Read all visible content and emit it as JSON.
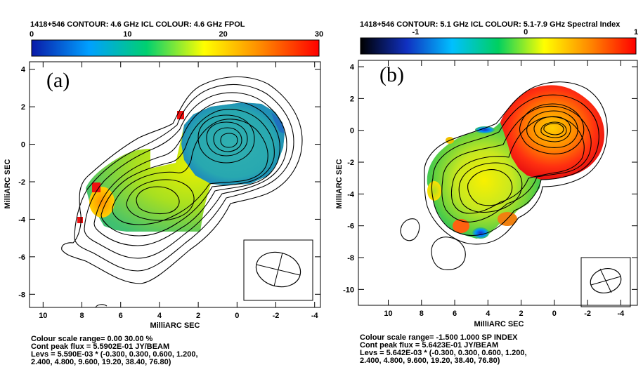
{
  "chart_data": [
    {
      "type": "heatmap",
      "panel_label": "(a)",
      "title": "1418+546  CONTOUR: 4.6 GHz ICL   COLOUR: 4.6 GHz FPOL",
      "xlabel": "MilliARC SEC",
      "ylabel": "MilliARC SEC",
      "xlim": [
        10.7,
        -4.3
      ],
      "ylim": [
        -8.7,
        4.4
      ],
      "xticks": [
        10,
        8,
        6,
        4,
        2,
        0,
        -2,
        -4
      ],
      "yticks": [
        4,
        2,
        0,
        -2,
        -4,
        -6,
        -8
      ],
      "colorbar": {
        "range": [
          0,
          30
        ],
        "ticks": [
          0,
          10,
          20,
          30
        ],
        "colors": [
          "#0a1aa8",
          "#00a0ff",
          "#00d070",
          "#ffff00",
          "#ff8800",
          "#ff0000"
        ]
      },
      "beam": {
        "type": "ellipse",
        "shown": true
      },
      "footer": [
        "Colour scale range= 0.00 30.00 %",
        "Cont peak flux =  5.5902E-01 JY/BEAM",
        "Levs = 5.590E-03 * (-0.300, 0.300, 0.600, 1.200,",
        "2.400, 4.800, 9.600, 19.20, 38.40, 76.80)"
      ]
    },
    {
      "type": "heatmap",
      "panel_label": "(b)",
      "title": "1418+546   CONTOUR: 5.1 GHz ICL   COLOUR: 5.1-7.9 GHz Spectral Index",
      "xlabel": "MilliARC SEC",
      "ylabel": "MilliARC SEC",
      "xlim": [
        11.8,
        -5.0
      ],
      "ylim": [
        -11.0,
        4.4
      ],
      "xticks": [
        10,
        8,
        6,
        4,
        2,
        0,
        -2,
        -4
      ],
      "yticks": [
        4,
        2,
        0,
        -2,
        -4,
        -6,
        -8,
        -10
      ],
      "colorbar": {
        "range": [
          -1.5,
          1.0
        ],
        "ticks": [
          -1,
          0,
          1
        ],
        "colors": [
          "#000000",
          "#1030c0",
          "#00c0ff",
          "#00d060",
          "#ffff00",
          "#ff8800",
          "#ff0000"
        ]
      },
      "beam": {
        "type": "ellipse",
        "shown": true
      },
      "footer": [
        "Colour scale range= -1.500 1.000 SP INDEX",
        "Cont peak flux =  5.6423E-01 JY/BEAM",
        "Levs = 5.642E-03 * (-0.300, 0.300, 0.600, 1.200,",
        "2.400, 4.800, 9.600, 19.20, 38.40, 76.80)"
      ]
    }
  ]
}
